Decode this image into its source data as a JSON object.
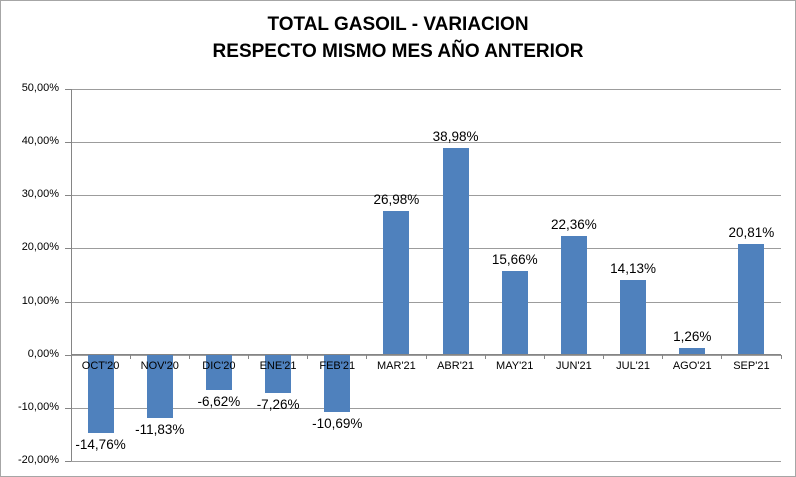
{
  "title": {
    "line1": "TOTAL GASOIL - VARIACION",
    "line2": "RESPECTO MISMO MES AÑO ANTERIOR"
  },
  "colors": {
    "bar": "#4F81BD",
    "gridline": "#9c9c9c",
    "axis": "#858585",
    "border": "#a6a6a6",
    "text": "#000000",
    "background": "#ffffff"
  },
  "chart_data": {
    "type": "bar",
    "title": "TOTAL GASOIL - VARIACION RESPECTO MISMO MES AÑO ANTERIOR",
    "categories": [
      "OCT'20",
      "NOV'20",
      "DIC'20",
      "ENE'21",
      "FEB'21",
      "MAR'21",
      "ABR'21",
      "MAY'21",
      "JUN'21",
      "JUL'21",
      "AGO'21",
      "SEP'21"
    ],
    "values": [
      -14.76,
      -11.83,
      -6.62,
      -7.26,
      -10.69,
      26.98,
      38.98,
      15.66,
      22.36,
      14.13,
      1.26,
      20.81
    ],
    "value_labels": [
      "-14,76%",
      "-11,83%",
      "-6,62%",
      "-7,26%",
      "-10,69%",
      "26,98%",
      "38,98%",
      "15,66%",
      "22,36%",
      "14,13%",
      "1,26%",
      "20,81%"
    ],
    "y_tick_values": [
      50,
      40,
      30,
      20,
      10,
      0,
      -10,
      -20
    ],
    "y_tick_labels": [
      "50,00%",
      "40,00%",
      "30,00%",
      "20,00%",
      "10,00%",
      "0,00%",
      "-10,00%",
      "-20,00%"
    ],
    "ylim": [
      -20,
      50
    ],
    "xlabel": "",
    "ylabel": "",
    "grid": true,
    "legend": false,
    "bar_color": "#4F81BD",
    "value_label_position": "outside_end",
    "category_label_position": "below_zero_axis"
  }
}
